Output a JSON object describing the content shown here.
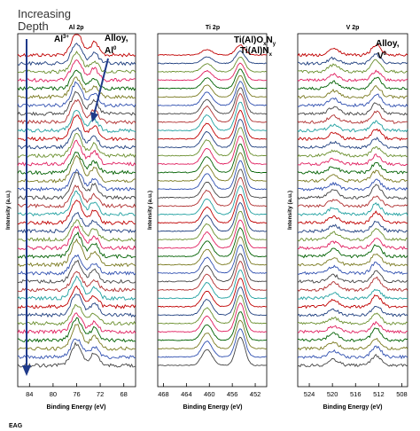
{
  "header": {
    "line1": "Increasing",
    "line2": "Depth"
  },
  "footer": {
    "label": "EAG"
  },
  "colors": {
    "series": [
      "#c00000",
      "#1f3f7f",
      "#6a8f2e",
      "#e02060",
      "#006000",
      "#7a7a20",
      "#3050b0",
      "#444444",
      "#b03030",
      "#20a0a0"
    ],
    "arrow": "#1f3a8a"
  },
  "chart_data": [
    {
      "type": "line",
      "title": "Al 2p",
      "xlabel": "Binding Energy (eV)",
      "ylabel": "Intensity (a.u.)",
      "xlim": [
        86,
        66
      ],
      "x_reversed": true,
      "xticks": [
        "84",
        "80",
        "76",
        "72",
        "68"
      ],
      "grid": false,
      "num_spectra": 38,
      "spectrum_components": [
        {
          "center": 76.0,
          "width": 0.9,
          "height": 1.0
        },
        {
          "center": 73.0,
          "width": 0.7,
          "height": 0.55
        }
      ],
      "annotations": [
        {
          "label": "Al",
          "sup": "3+",
          "sub": ""
        },
        {
          "label": "Alloy,",
          "sup": "",
          "sub": ""
        },
        {
          "label": "Al",
          "sup": "0",
          "sub": ""
        }
      ]
    },
    {
      "type": "line",
      "title": "Ti 2p",
      "xlabel": "Binding Energy (eV)",
      "ylabel": "Intensity (a.u.)",
      "xlim": [
        469,
        450
      ],
      "x_reversed": true,
      "xticks": [
        "468",
        "464",
        "460",
        "456",
        "452"
      ],
      "grid": false,
      "num_spectra": 38,
      "spectrum_components": [
        {
          "center": 460.4,
          "width": 0.9,
          "height": 0.55
        },
        {
          "center": 454.6,
          "width": 0.8,
          "height": 1.0
        }
      ],
      "annotations": [
        {
          "label": "Ti(Al)O",
          "sub_parts": [
            "x",
            "y"
          ],
          "text": "Ti(Al)OxNy"
        },
        {
          "label": "Ti(Al)N",
          "text": "Ti(Al)Nx"
        }
      ]
    },
    {
      "type": "line",
      "title": "V 2p",
      "xlabel": "Binding Energy (eV)",
      "ylabel": "Intensity (a.u.)",
      "xlim": [
        526,
        507
      ],
      "x_reversed": true,
      "xticks": [
        "524",
        "520",
        "516",
        "512",
        "508"
      ],
      "grid": false,
      "num_spectra": 38,
      "spectrum_components": [
        {
          "center": 519.8,
          "width": 0.9,
          "height": 0.45
        },
        {
          "center": 512.4,
          "width": 0.8,
          "height": 0.75
        }
      ],
      "annotations": [
        {
          "label": "Alloy,",
          "sup": "",
          "sub": ""
        },
        {
          "label": "V",
          "sup": "0",
          "sub": ""
        }
      ]
    }
  ]
}
